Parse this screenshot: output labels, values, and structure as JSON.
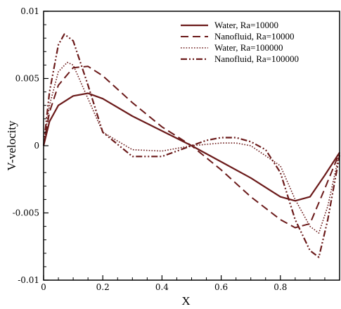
{
  "chart_data": {
    "type": "line",
    "title": "",
    "xlabel": "X",
    "ylabel": "V-velocity",
    "xlim": [
      0,
      1
    ],
    "ylim": [
      -0.01,
      0.01
    ],
    "x_ticks": [
      "0",
      "0.2",
      "0.4",
      "0.6",
      "0.8"
    ],
    "y_ticks": [
      "0.01",
      "0.005",
      "0",
      "-0.005",
      "-0.01"
    ],
    "grid": false,
    "legend_position": "top-right",
    "series": [
      {
        "name": "Water, Ra=10000",
        "style": "solid",
        "color": "#6b1a1a",
        "x": [
          0,
          0.02,
          0.05,
          0.1,
          0.15,
          0.2,
          0.3,
          0.4,
          0.5,
          0.6,
          0.7,
          0.8,
          0.85,
          0.9,
          0.95,
          1.0
        ],
        "y": [
          0,
          0.0018,
          0.003,
          0.0037,
          0.0039,
          0.0035,
          0.0022,
          0.0011,
          0,
          -0.0012,
          -0.0024,
          -0.0038,
          -0.0041,
          -0.0038,
          -0.0022,
          -0.0005
        ]
      },
      {
        "name": "Nanofluid, Ra=10000",
        "style": "dashed",
        "color": "#6b1a1a",
        "x": [
          0,
          0.02,
          0.05,
          0.1,
          0.15,
          0.2,
          0.3,
          0.4,
          0.5,
          0.6,
          0.7,
          0.8,
          0.85,
          0.9,
          0.95,
          1.0
        ],
        "y": [
          0,
          0.0025,
          0.0045,
          0.0058,
          0.0059,
          0.0052,
          0.0032,
          0.0014,
          0,
          -0.0018,
          -0.0038,
          -0.0055,
          -0.0061,
          -0.0058,
          -0.0032,
          -0.0005
        ]
      },
      {
        "name": "Water, Ra=100000",
        "style": "dotted",
        "color": "#6b1a1a",
        "x": [
          0,
          0.02,
          0.05,
          0.08,
          0.1,
          0.15,
          0.2,
          0.3,
          0.4,
          0.5,
          0.6,
          0.65,
          0.7,
          0.8,
          0.85,
          0.9,
          0.93,
          0.96,
          1.0
        ],
        "y": [
          0,
          0.003,
          0.0055,
          0.0062,
          0.006,
          0.0035,
          0.001,
          -0.0003,
          -0.0004,
          0,
          0.0002,
          0.0002,
          0,
          -0.0015,
          -0.004,
          -0.006,
          -0.0065,
          -0.0045,
          -0.0005
        ]
      },
      {
        "name": "Nanofluid, Ra=100000",
        "style": "dashdotdot",
        "color": "#6b1a1a",
        "x": [
          0,
          0.02,
          0.05,
          0.07,
          0.1,
          0.15,
          0.2,
          0.3,
          0.4,
          0.5,
          0.55,
          0.6,
          0.65,
          0.7,
          0.75,
          0.8,
          0.85,
          0.9,
          0.93,
          0.96,
          1.0
        ],
        "y": [
          0,
          0.004,
          0.0075,
          0.0083,
          0.0078,
          0.0045,
          0.001,
          -0.0008,
          -0.0008,
          0,
          0.0004,
          0.0006,
          0.0006,
          0.0003,
          -0.0003,
          -0.002,
          -0.0055,
          -0.0078,
          -0.0083,
          -0.0055,
          -0.0007
        ]
      }
    ]
  }
}
